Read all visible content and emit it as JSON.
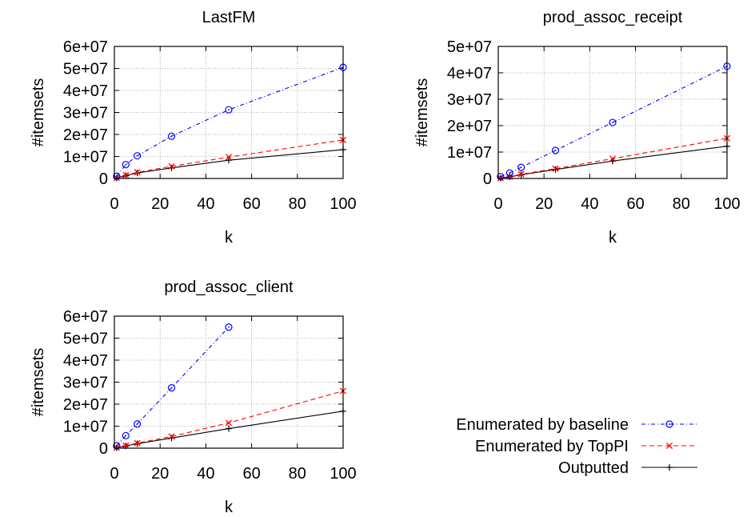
{
  "legend": {
    "placement": "bottom-right",
    "entries": [
      {
        "label": "Enumerated by baseline",
        "color": "#0000ff",
        "dash": "dash-dot",
        "marker": "circle"
      },
      {
        "label": "Enumerated by TopPI",
        "color": "#ff0000",
        "dash": "dashed",
        "marker": "x"
      },
      {
        "label": "Outputted",
        "color": "#000000",
        "dash": "solid",
        "marker": "plus"
      }
    ]
  },
  "chart_data": [
    {
      "type": "line",
      "title": "LastFM",
      "xlabel": "k",
      "ylabel": "#itemsets",
      "xlim": [
        0,
        100
      ],
      "ylim": [
        0,
        60000000
      ],
      "xticks": [
        0,
        20,
        40,
        60,
        80,
        100
      ],
      "yticks": [
        0,
        10000000,
        20000000,
        30000000,
        40000000,
        50000000,
        60000000
      ],
      "ytick_labels": [
        "0",
        "1e+07",
        "2e+07",
        "3e+07",
        "4e+07",
        "5e+07",
        "6e+07"
      ],
      "grid": true,
      "series": [
        {
          "name": "Enumerated by baseline",
          "x": [
            1,
            5,
            10,
            25,
            50,
            100
          ],
          "values": [
            1000000,
            6300000,
            10300000,
            19200000,
            31200000,
            50500000
          ]
        },
        {
          "name": "Enumerated by TopPI",
          "x": [
            1,
            5,
            10,
            25,
            50,
            100
          ],
          "values": [
            300000,
            1500000,
            2800000,
            5500000,
            9700000,
            17500000
          ]
        },
        {
          "name": "Outputted",
          "x": [
            1,
            5,
            10,
            25,
            50,
            100
          ],
          "values": [
            200000,
            1300000,
            2500000,
            4800000,
            8300000,
            13100000
          ]
        }
      ]
    },
    {
      "type": "line",
      "title": "prod_assoc_receipt",
      "xlabel": "k",
      "ylabel": "#itemsets",
      "xlim": [
        0,
        100
      ],
      "ylim": [
        0,
        50000000
      ],
      "xticks": [
        0,
        20,
        40,
        60,
        80,
        100
      ],
      "yticks": [
        0,
        10000000,
        20000000,
        30000000,
        40000000,
        50000000
      ],
      "ytick_labels": [
        "0",
        "1e+07",
        "2e+07",
        "3e+07",
        "4e+07",
        "5e+07"
      ],
      "grid": true,
      "series": [
        {
          "name": "Enumerated by baseline",
          "x": [
            1,
            5,
            10,
            25,
            50,
            100
          ],
          "values": [
            700000,
            2100000,
            4200000,
            10600000,
            21200000,
            42500000
          ]
        },
        {
          "name": "Enumerated by TopPI",
          "x": [
            1,
            5,
            10,
            25,
            50,
            100
          ],
          "values": [
            100000,
            700000,
            1600000,
            3700000,
            7500000,
            15200000
          ]
        },
        {
          "name": "Outputted",
          "x": [
            1,
            5,
            10,
            25,
            50,
            100
          ],
          "values": [
            100000,
            600000,
            1400000,
            3400000,
            6600000,
            12200000
          ]
        }
      ]
    },
    {
      "type": "line",
      "title": "prod_assoc_client",
      "xlabel": "k",
      "ylabel": "#itemsets",
      "xlim": [
        0,
        100
      ],
      "ylim": [
        0,
        60000000
      ],
      "xticks": [
        0,
        20,
        40,
        60,
        80,
        100
      ],
      "yticks": [
        0,
        10000000,
        20000000,
        30000000,
        40000000,
        50000000,
        60000000
      ],
      "ytick_labels": [
        "0",
        "1e+07",
        "2e+07",
        "3e+07",
        "4e+07",
        "5e+07",
        "6e+07"
      ],
      "grid": true,
      "series": [
        {
          "name": "Enumerated by baseline",
          "x": [
            1,
            5,
            10,
            25,
            50
          ],
          "values": [
            1100000,
            5700000,
            11000000,
            27400000,
            55000000
          ]
        },
        {
          "name": "Enumerated by TopPI",
          "x": [
            1,
            5,
            10,
            25,
            50,
            100
          ],
          "values": [
            200000,
            1200000,
            2300000,
            5300000,
            11500000,
            26000000
          ]
        },
        {
          "name": "Outputted",
          "x": [
            1,
            5,
            10,
            25,
            50,
            100
          ],
          "values": [
            200000,
            1000000,
            2000000,
            4600000,
            8900000,
            16800000
          ]
        }
      ]
    }
  ]
}
